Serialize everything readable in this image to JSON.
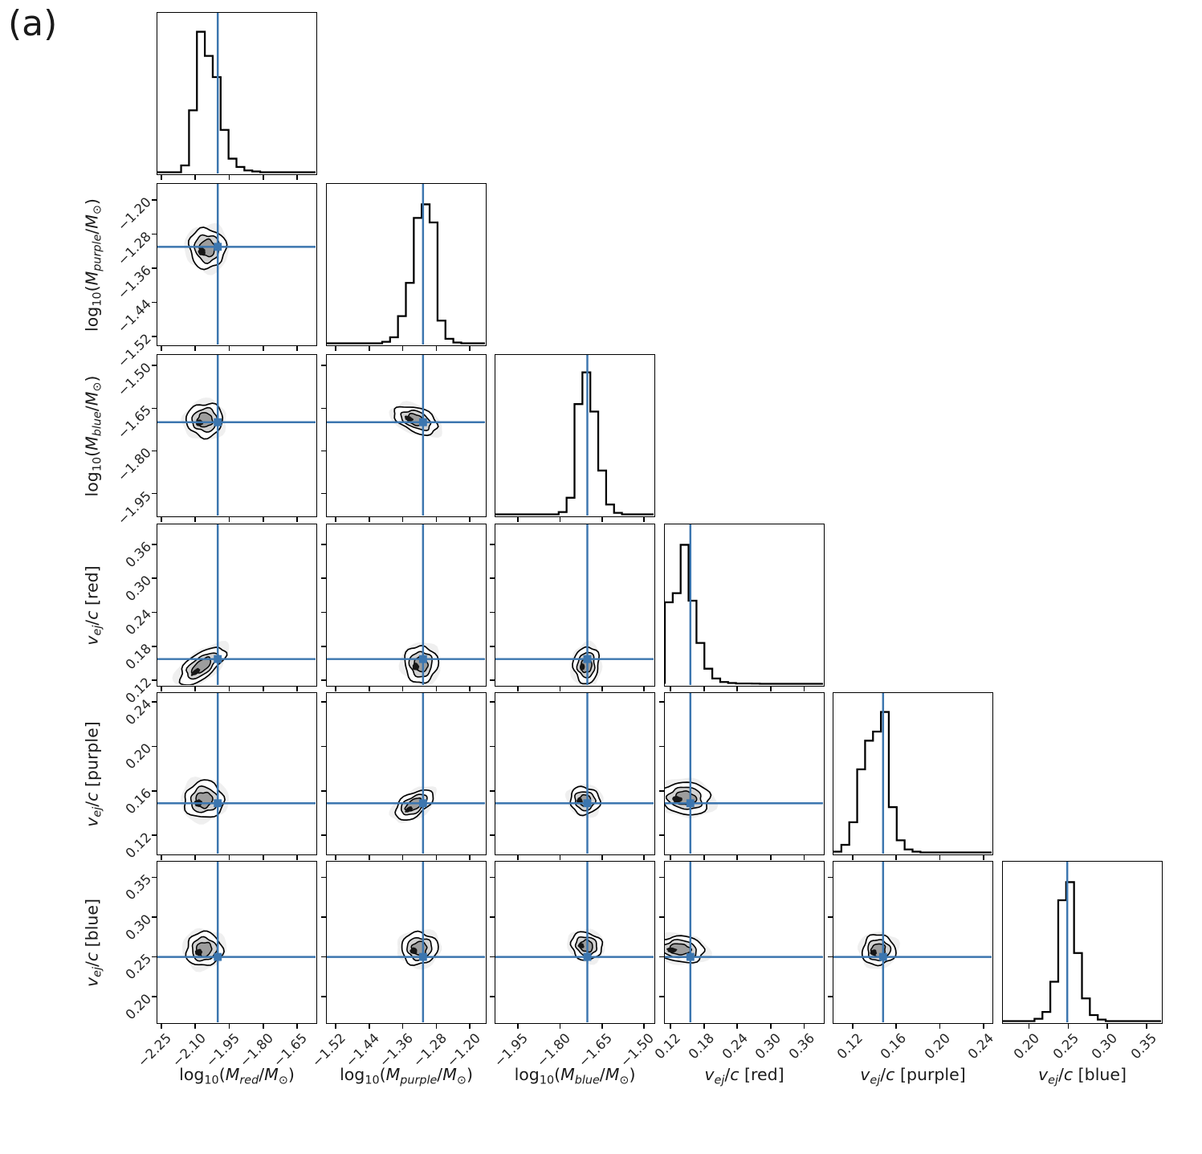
{
  "figure": {
    "panel_label": "(a)",
    "background_color": "#ffffff",
    "truth_color": "#3c76af",
    "contour_line_color": "#000000",
    "hist_line_color": "#000000"
  },
  "chart_data": {
    "type": "heatmap",
    "subtype": "corner-posterior-plot-6-parameters",
    "grid": "6x6 lower triangle, histograms on diagonal, 2D contour panels off-diagonal, blue truth crosshairs",
    "parameters": [
      {
        "key": "log_m_red",
        "label_text": "log10(M_red/M_sun)",
        "label_segments": [
          [
            "log",
            "n"
          ],
          [
            "10",
            "s"
          ],
          [
            "(",
            "n"
          ],
          [
            "M",
            "i"
          ],
          [
            "red",
            "si"
          ],
          [
            "/",
            "n"
          ],
          [
            "M",
            "i"
          ],
          [
            "⊙",
            "s"
          ],
          [
            ")",
            "n"
          ]
        ],
        "lim": [
          -2.271,
          -1.561
        ],
        "ticks": [
          -2.25,
          -2.1,
          -1.95,
          -1.8,
          -1.65
        ],
        "tick_labels": [
          "−2.25",
          "−2.10",
          "−1.95",
          "−1.80",
          "−1.65"
        ],
        "truth": -2.0,
        "hist": [
          0,
          0,
          0,
          0.045,
          0.41,
          0.93,
          0.77,
          0.63,
          0.28,
          0.09,
          0.035,
          0.012,
          0.005,
          0,
          0,
          0,
          0,
          0,
          0,
          0
        ]
      },
      {
        "key": "log_m_purple",
        "label_text": "log10(M_purple/M_sun)",
        "label_segments": [
          [
            "log",
            "n"
          ],
          [
            "10",
            "s"
          ],
          [
            "(",
            "n"
          ],
          [
            "M",
            "i"
          ],
          [
            "purple",
            "si"
          ],
          [
            "/",
            "n"
          ],
          [
            "M",
            "i"
          ],
          [
            "⊙",
            "s"
          ],
          [
            ")",
            "n"
          ]
        ],
        "lim": [
          -1.543,
          -1.16
        ],
        "ticks": [
          -1.52,
          -1.44,
          -1.36,
          -1.28,
          -1.2
        ],
        "tick_labels": [
          "−1.52",
          "−1.44",
          "−1.36",
          "−1.28",
          "−1.20"
        ],
        "truth": -1.31,
        "hist": [
          0,
          0,
          0,
          0,
          0,
          0,
          0,
          0.01,
          0.04,
          0.18,
          0.4,
          0.83,
          0.92,
          0.8,
          0.15,
          0.03,
          0.005,
          0,
          0,
          0
        ]
      },
      {
        "key": "log_m_blue",
        "label_text": "log10(M_blue/M_sun)",
        "label_segments": [
          [
            "log",
            "n"
          ],
          [
            "10",
            "s"
          ],
          [
            "(",
            "n"
          ],
          [
            "M",
            "i"
          ],
          [
            "blue",
            "si"
          ],
          [
            "/",
            "n"
          ],
          [
            "M",
            "i"
          ],
          [
            "⊙",
            "s"
          ],
          [
            ")",
            "n"
          ]
        ],
        "lim": [
          -2.033,
          -1.46
        ],
        "ticks": [
          -1.95,
          -1.8,
          -1.65,
          -1.5
        ],
        "tick_labels": [
          "−1.95",
          "−1.80",
          "−1.65",
          "−1.50"
        ],
        "truth": -1.7,
        "hist": [
          0,
          0,
          0,
          0,
          0,
          0,
          0,
          0,
          0.015,
          0.11,
          0.73,
          0.94,
          0.68,
          0.29,
          0.065,
          0.01,
          0,
          0,
          0,
          0
        ]
      },
      {
        "key": "v_ej_red",
        "label_text": "v_ej/c [red]",
        "label_segments": [
          [
            "v",
            "i"
          ],
          [
            "ej",
            "si"
          ],
          [
            "/",
            "n"
          ],
          [
            "c",
            "i"
          ],
          [
            " [red]",
            "n"
          ]
        ],
        "lim": [
          0.1085,
          0.3966
        ],
        "ticks": [
          0.12,
          0.18,
          0.24,
          0.3,
          0.36
        ],
        "tick_labels": [
          "0.12",
          "0.18",
          "0.24",
          "0.30",
          "0.36"
        ],
        "truth": 0.155,
        "hist": [
          0.54,
          0.6,
          0.92,
          0.55,
          0.27,
          0.1,
          0.035,
          0.012,
          0.005,
          0.002,
          0.002,
          0.001,
          0,
          0,
          0,
          0,
          0,
          0,
          0,
          0
        ]
      },
      {
        "key": "v_ej_purple",
        "label_text": "v_ej/c [purple]",
        "label_segments": [
          [
            "v",
            "i"
          ],
          [
            "ej",
            "si"
          ],
          [
            "/",
            "n"
          ],
          [
            "c",
            "i"
          ],
          [
            " [purple]",
            "n"
          ]
        ],
        "lim": [
          0.1019,
          0.2488
        ],
        "ticks": [
          0.12,
          0.16,
          0.2,
          0.24
        ],
        "tick_labels": [
          "0.12",
          "0.16",
          "0.20",
          "0.24"
        ],
        "truth": 0.148,
        "hist": [
          0.005,
          0.05,
          0.2,
          0.55,
          0.74,
          0.8,
          0.93,
          0.3,
          0.08,
          0.02,
          0.005,
          0,
          0,
          0,
          0,
          0,
          0,
          0,
          0,
          0
        ]
      },
      {
        "key": "v_ej_blue",
        "label_text": "v_ej/c [blue]",
        "label_segments": [
          [
            "v",
            "i"
          ],
          [
            "ej",
            "si"
          ],
          [
            "/",
            "n"
          ],
          [
            "c",
            "i"
          ],
          [
            " [blue]",
            "n"
          ]
        ],
        "lim": [
          0.1656,
          0.3705
        ],
        "ticks": [
          0.2,
          0.25,
          0.3,
          0.35
        ],
        "tick_labels": [
          "0.20",
          "0.25",
          "0.30",
          "0.35"
        ],
        "truth": 0.249,
        "hist": [
          0,
          0,
          0,
          0,
          0.015,
          0.06,
          0.26,
          0.8,
          0.92,
          0.45,
          0.15,
          0.04,
          0.01,
          0,
          0,
          0,
          0,
          0,
          0,
          0
        ]
      }
    ],
    "truths": [
      -2.0,
      -1.31,
      -1.7,
      0.155,
      0.148,
      0.249
    ],
    "contours": {
      "r1c0": {
        "cx": 0.315,
        "cy": 0.4,
        "rx": 0.115,
        "ry": 0.125,
        "rot": -10
      },
      "r2c0": {
        "cx": 0.3,
        "cy": 0.405,
        "rx": 0.115,
        "ry": 0.105,
        "rot": -8
      },
      "r2c1": {
        "cx": 0.565,
        "cy": 0.405,
        "rx": 0.145,
        "ry": 0.075,
        "rot": 22
      },
      "r3c0": {
        "cx": 0.28,
        "cy": 0.88,
        "rx": 0.17,
        "ry": 0.075,
        "rot": -37
      },
      "r3c1": {
        "cx": 0.595,
        "cy": 0.87,
        "rx": 0.105,
        "ry": 0.115,
        "rot": -4
      },
      "r3c2": {
        "cx": 0.575,
        "cy": 0.875,
        "rx": 0.08,
        "ry": 0.115,
        "rot": 4
      },
      "r4c0": {
        "cx": 0.295,
        "cy": 0.665,
        "rx": 0.125,
        "ry": 0.115,
        "rot": -10
      },
      "r4c1": {
        "cx": 0.55,
        "cy": 0.695,
        "rx": 0.135,
        "ry": 0.07,
        "rot": -33
      },
      "r4c2": {
        "cx": 0.565,
        "cy": 0.67,
        "rx": 0.095,
        "ry": 0.085,
        "rot": 18
      },
      "r4c3": {
        "cx": 0.13,
        "cy": 0.655,
        "rx": 0.16,
        "ry": 0.1,
        "rot": 6
      },
      "r5c0": {
        "cx": 0.295,
        "cy": 0.545,
        "rx": 0.115,
        "ry": 0.105,
        "rot": -12
      },
      "r5c1": {
        "cx": 0.585,
        "cy": 0.54,
        "rx": 0.115,
        "ry": 0.1,
        "rot": -5
      },
      "r5c2": {
        "cx": 0.575,
        "cy": 0.525,
        "rx": 0.1,
        "ry": 0.085,
        "rot": 22
      },
      "r5c3": {
        "cx": 0.095,
        "cy": 0.545,
        "rx": 0.16,
        "ry": 0.08,
        "rot": 5
      },
      "r5c4": {
        "cx": 0.285,
        "cy": 0.55,
        "rx": 0.105,
        "ry": 0.095,
        "rot": -8
      }
    }
  }
}
